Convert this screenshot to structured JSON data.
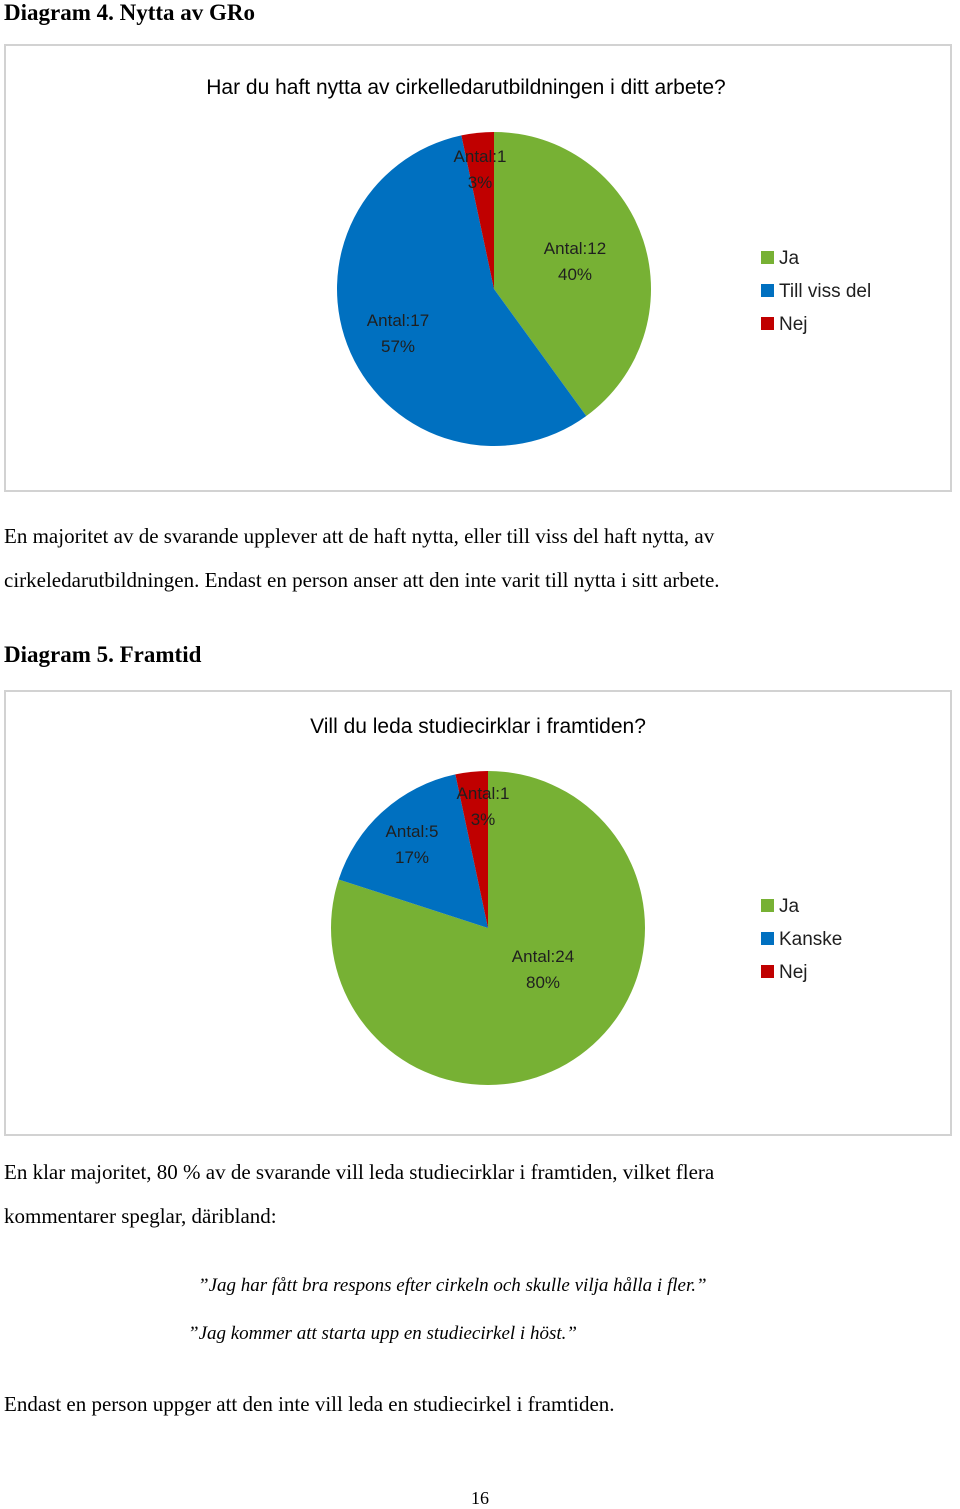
{
  "diagram4": {
    "heading": "Diagram 4. Nytta av GRo",
    "chart_data": {
      "type": "pie",
      "title": "Har du haft nytta av cirkelledarutbildningen i ditt arbete?",
      "slices": [
        {
          "name": "Ja",
          "value": 12,
          "percent": 40,
          "color": "#77b134",
          "label_count": "Antal:12",
          "label_pct": "40%"
        },
        {
          "name": "Till viss del",
          "value": 17,
          "percent": 57,
          "color": "#0070c0",
          "label_count": "Antal:17",
          "label_pct": "57%"
        },
        {
          "name": "Nej",
          "value": 1,
          "percent": 3,
          "color": "#c00000",
          "label_count": "Antal:1",
          "label_pct": "3%"
        }
      ],
      "legend": [
        "Ja",
        "Till viss del",
        "Nej"
      ],
      "legend_position": "right"
    }
  },
  "paragraph1": {
    "line1": "En majoritet av de svarande upplever att de haft nytta, eller till viss del haft nytta, av",
    "line2": "cirkeledarutbildningen. Endast en person anser att den inte varit till nytta i sitt arbete."
  },
  "diagram5": {
    "heading": "Diagram 5. Framtid",
    "chart_data": {
      "type": "pie",
      "title": "Vill du leda studiecirklar i framtiden?",
      "slices": [
        {
          "name": "Ja",
          "value": 24,
          "percent": 80,
          "color": "#77b134",
          "label_count": "Antal:24",
          "label_pct": "80%"
        },
        {
          "name": "Kanske",
          "value": 5,
          "percent": 17,
          "color": "#0070c0",
          "label_count": "Antal:5",
          "label_pct": "17%"
        },
        {
          "name": "Nej",
          "value": 1,
          "percent": 3,
          "color": "#c00000",
          "label_count": "Antal:1",
          "label_pct": "3%"
        }
      ],
      "legend": [
        "Ja",
        "Kanske",
        "Nej"
      ],
      "legend_position": "right"
    }
  },
  "paragraph2": {
    "line1": "En klar majoritet, 80 % av de svarande vill leda studiecirklar i framtiden, vilket flera",
    "line2": "kommentarer speglar, däribland:"
  },
  "quotes": [
    "”Jag har fått bra respons efter cirkeln och skulle vilja hålla i fler.”",
    "”Jag kommer att starta upp en studiecirkel i höst.”"
  ],
  "paragraph3": "Endast en person uppger att den inte vill leda en studiecirkel i framtiden.",
  "page_number": "16"
}
